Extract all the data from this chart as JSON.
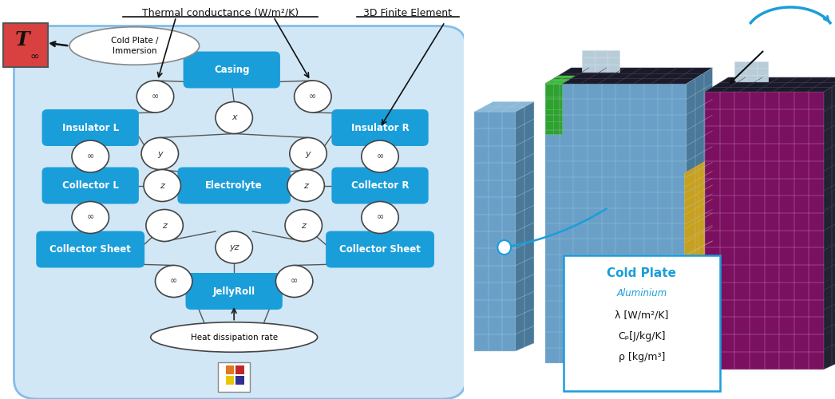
{
  "bg_rect_color": "#cce5f5",
  "bg_rect_outline": "#7ab8e8",
  "node_color": "#1a9eda",
  "node_text_color": "white",
  "t_box_color": "#d94040",
  "thermal_label": "Thermal conductance (W/m²/K)",
  "fe_label": "3D Finite Element",
  "heat_label": "Heat dissipation rate",
  "cold_ellipse_label": "Cold Plate /\nImmersion",
  "cold_plate_title": "Cold Plate",
  "cold_plate_material": "Aluminium",
  "cold_plate_lambda": "λ [W/m²/K]",
  "cold_plate_cp": "Cₚ[J/kg/K]",
  "cold_plate_rho": "ρ [kg/m³]",
  "mesh_blue": "#6aa0c8",
  "mesh_line": "#aaccdd",
  "mesh_purple": "#7b1060",
  "mesh_purple_line": "#cc88bb",
  "mesh_dark": "#1a1a2a",
  "mesh_dark_line": "#444455"
}
